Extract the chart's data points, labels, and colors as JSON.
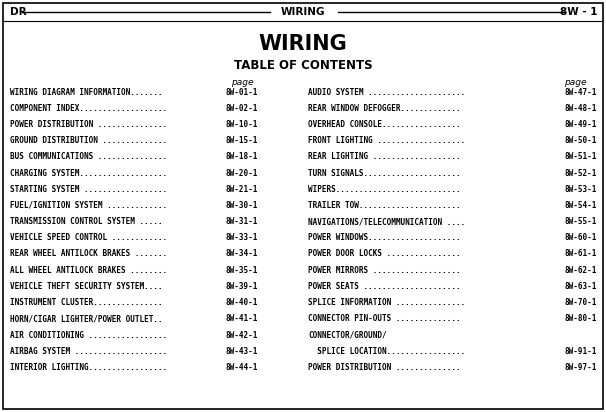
{
  "bg_color": "#ffffff",
  "page_bg": "#ffffff",
  "border_color": "#000000",
  "header_left": "DR",
  "header_center": "WIRING",
  "header_right": "8W - 1",
  "title": "WIRING",
  "subtitle": "TABLE OF CONTENTS",
  "col_header": "page",
  "left_items": [
    [
      "WIRING DIAGRAM INFORMATION.......",
      "8W-01-1"
    ],
    [
      "COMPONENT INDEX...................",
      "8W-02-1"
    ],
    [
      "POWER DISTRIBUTION ...............",
      "8W-10-1"
    ],
    [
      "GROUND DISTRIBUTION ..............",
      "8W-15-1"
    ],
    [
      "BUS COMMUNICATIONS ...............",
      "8W-18-1"
    ],
    [
      "CHARGING SYSTEM...................",
      "8W-20-1"
    ],
    [
      "STARTING SYSTEM ..................",
      "8W-21-1"
    ],
    [
      "FUEL/IGNITION SYSTEM .............",
      "8W-30-1"
    ],
    [
      "TRANSMISSION CONTROL SYSTEM .....",
      "8W-31-1"
    ],
    [
      "VEHICLE SPEED CONTROL ............",
      "8W-33-1"
    ],
    [
      "REAR WHEEL ANTILOCK BRAKES .......",
      "8W-34-1"
    ],
    [
      "ALL WHEEL ANTILOCK BRAKES ........",
      "8W-35-1"
    ],
    [
      "VEHICLE THEFT SECURITY SYSTEM....",
      "8W-39-1"
    ],
    [
      "INSTRUMENT CLUSTER...............",
      "8W-40-1"
    ],
    [
      "HORN/CIGAR LIGHTER/POWER OUTLET..",
      "8W-41-1"
    ],
    [
      "AIR CONDITIONING .................",
      "8W-42-1"
    ],
    [
      "AIRBAG SYSTEM ....................",
      "8W-43-1"
    ],
    [
      "INTERIOR LIGHTING.................",
      "8W-44-1"
    ]
  ],
  "right_items": [
    [
      "AUDIO SYSTEM .....................",
      "8W-47-1"
    ],
    [
      "REAR WINDOW DEFOGGER.............",
      "8W-48-1"
    ],
    [
      "OVERHEAD CONSOLE.................",
      "8W-49-1"
    ],
    [
      "FRONT LIGHTING ...................",
      "8W-50-1"
    ],
    [
      "REAR LIGHTING ...................",
      "8W-51-1"
    ],
    [
      "TURN SIGNALS.....................",
      "8W-52-1"
    ],
    [
      "WIPERS...........................",
      "8W-53-1"
    ],
    [
      "TRAILER TOW......................",
      "8W-54-1"
    ],
    [
      "NAVIGATIONS/TELECOMMUNICATION ....",
      "8W-55-1"
    ],
    [
      "POWER WINDOWS....................",
      "8W-60-1"
    ],
    [
      "POWER DOOR LOCKS ................",
      "8W-61-1"
    ],
    [
      "POWER MIRRORS ...................",
      "8W-62-1"
    ],
    [
      "POWER SEATS .....................",
      "8W-63-1"
    ],
    [
      "SPLICE INFORMATION ...............",
      "8W-70-1"
    ],
    [
      "CONNECTOR PIN-OUTS ..............",
      "8W-80-1"
    ],
    [
      "CONNECTOR/GROUND/",
      ""
    ],
    [
      "  SPLICE LOCATION.................",
      "8W-91-1"
    ],
    [
      "POWER DISTRIBUTION ..............",
      "8W-97-1"
    ]
  ],
  "figsize": [
    6.06,
    4.12
  ],
  "dpi": 100
}
